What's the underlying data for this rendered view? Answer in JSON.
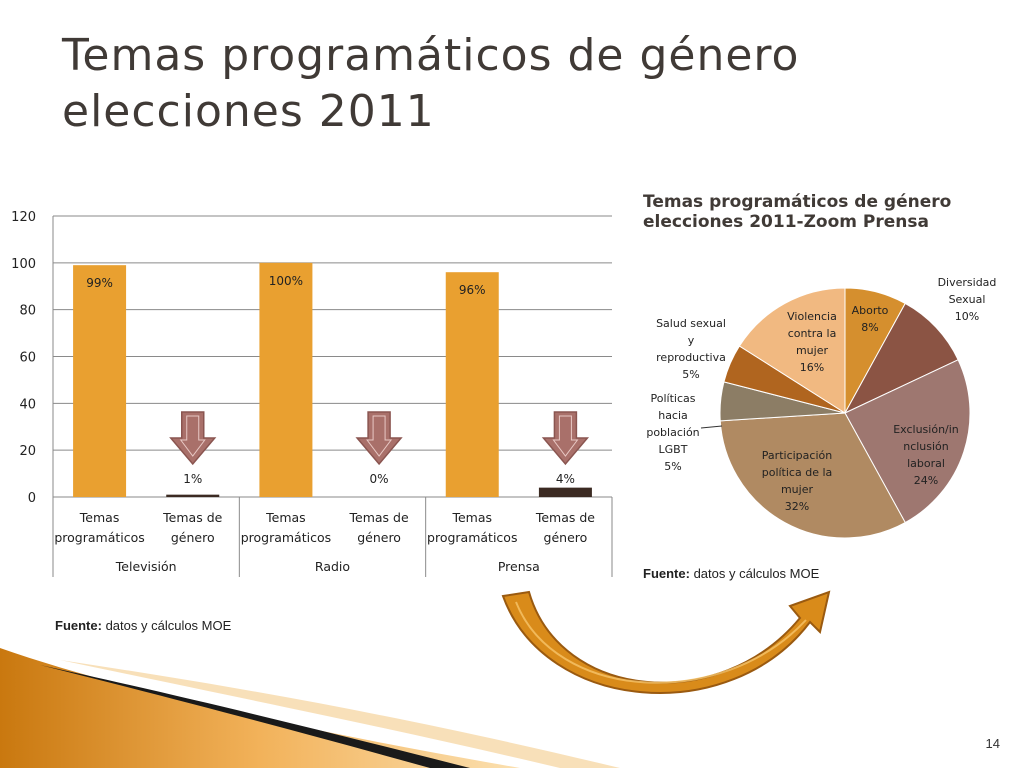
{
  "slide": {
    "title_line1": "Temas programáticos de género",
    "title_line2": "elecciones 2011",
    "page_number": "14",
    "source_label": "Fuente:",
    "source_text": " datos y cálculos  MOE"
  },
  "colors": {
    "bar_program": "#e9a030",
    "bar_gender": "#3b2a22",
    "arrow": "#a9706a",
    "curve_arrow": "#d98b1a"
  },
  "icons": [
    "down-arrow-icon",
    "curved-arrow-icon"
  ],
  "chart_data": [
    {
      "type": "bar",
      "ylim": [
        0,
        120
      ],
      "yticks": [
        "0",
        "20",
        "40",
        "60",
        "80",
        "100",
        "120"
      ],
      "grid": true,
      "groups": [
        "Televisión",
        "Radio",
        "Prensa"
      ],
      "categories": [
        "Temas programáticos",
        "Temas de género",
        "Temas programáticos",
        "Temas de género",
        "Temas programáticos",
        "Temas de género"
      ],
      "category_lines": [
        [
          "Temas",
          "programáticos"
        ],
        [
          "Temas de",
          "género"
        ],
        [
          "Temas",
          "programáticos"
        ],
        [
          "Temas de",
          "género"
        ],
        [
          "Temas",
          "programáticos"
        ],
        [
          "Temas de",
          "género"
        ]
      ],
      "values": [
        99,
        1,
        100,
        0,
        96,
        4
      ],
      "data_labels": [
        "99%",
        "1%",
        "100%",
        "0%",
        "96%",
        "4%"
      ]
    },
    {
      "type": "pie",
      "title_line1": "Temas programáticos de género",
      "title_line2": "elecciones 2011-Zoom Prensa",
      "slices": [
        {
          "name": "Aborto",
          "value": 8,
          "label": "8%",
          "color": "#d58f2e"
        },
        {
          "name": "Diversidad Sexual",
          "value": 10,
          "label": "10%",
          "color": "#8b5444"
        },
        {
          "name": "Exclusión/inclusión laboral",
          "value": 24,
          "label": "24%",
          "color": "#9e7770"
        },
        {
          "name": "Participación política de la mujer",
          "value": 32,
          "label": "32%",
          "color": "#b08a62"
        },
        {
          "name": "Políticas hacia población LGBT",
          "value": 5,
          "label": "5%",
          "color": "#8c7d65"
        },
        {
          "name": "Salud sexual y reproductiva",
          "value": 5,
          "label": "5%",
          "color": "#b0651f"
        },
        {
          "name": "Violencia contra la mujer",
          "value": 16,
          "label": "16%",
          "color": "#f1b981"
        }
      ],
      "label_lines": {
        "aborto": [
          "Aborto",
          "8%"
        ],
        "diversidad": [
          "Diversidad",
          "Sexual",
          "10%"
        ],
        "exclusion": [
          "Exclusión/in",
          "nclusión",
          "laboral",
          "24%"
        ],
        "participacion": [
          "Participación",
          "política de la",
          "mujer",
          "32%"
        ],
        "lgbt": [
          "Políticas",
          "hacia",
          "población",
          "LGBT",
          "5%"
        ],
        "salud": [
          "Salud sexual",
          "y",
          "reproductiva",
          "5%"
        ],
        "violencia": [
          "Violencia",
          "contra la",
          "mujer",
          "16%"
        ]
      }
    }
  ]
}
